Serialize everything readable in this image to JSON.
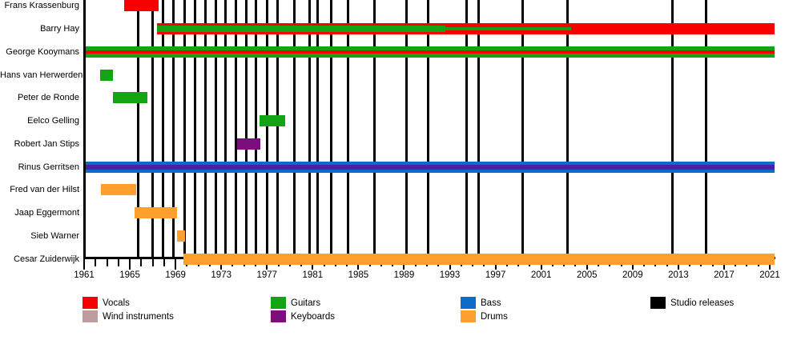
{
  "chart_data": {
    "type": "timeline",
    "description": "Band membership timeline (Gantt-style) with studio release markers",
    "x_axis": {
      "min": 1961,
      "max": 2021,
      "major_tick_step": 4,
      "minor_tick_step": 1,
      "tick_years": [
        1961,
        1965,
        1969,
        1973,
        1977,
        1981,
        1985,
        1989,
        1993,
        1997,
        2001,
        2005,
        2009,
        2013,
        2017,
        2021
      ],
      "tick_labels": [
        "1961",
        "1965",
        "1969",
        "1973",
        "1977",
        "1981",
        "1985",
        "1989",
        "1993",
        "1997",
        "2001",
        "2005",
        "2009",
        "2013",
        "2017",
        "2021"
      ]
    },
    "members": [
      {
        "name": "Frans Krassenburg",
        "segments": [
          {
            "from": 1964.5,
            "to": 1967.5,
            "stripes": [
              {
                "role": "vocals",
                "h": 14
              }
            ]
          }
        ]
      },
      {
        "name": "Barry Hay",
        "segments": [
          {
            "from": 1967.4,
            "to": 1992.6,
            "stripes": [
              {
                "role": "vocals",
                "h": 3
              },
              {
                "role": "guitars",
                "h": 8
              },
              {
                "role": "vocals",
                "h": 3
              }
            ]
          },
          {
            "from": 1992.6,
            "to": 2003.6,
            "stripes": [
              {
                "role": "vocals",
                "h": 5
              },
              {
                "role": "guitars",
                "h": 4
              },
              {
                "role": "vocals",
                "h": 5
              }
            ]
          },
          {
            "from": 2003.6,
            "to": 2021.4,
            "stripes": [
              {
                "role": "vocals",
                "h": 14
              }
            ]
          }
        ]
      },
      {
        "name": "George Kooymans",
        "segments": [
          {
            "from": 1961.0,
            "to": 2021.4,
            "stripes": [
              {
                "role": "guitars",
                "h": 5
              },
              {
                "role": "vocals",
                "h": 4
              },
              {
                "role": "guitars",
                "h": 5
              }
            ]
          }
        ]
      },
      {
        "name": "Hans van Herwerden",
        "segments": [
          {
            "from": 1962.4,
            "to": 1963.5,
            "stripes": [
              {
                "role": "guitars",
                "h": 14
              }
            ]
          }
        ]
      },
      {
        "name": "Peter de Ronde",
        "segments": [
          {
            "from": 1963.5,
            "to": 1966.55,
            "stripes": [
              {
                "role": "guitars",
                "h": 14
              }
            ]
          }
        ]
      },
      {
        "name": "Eelco Gelling",
        "segments": [
          {
            "from": 1976.35,
            "to": 1978.6,
            "stripes": [
              {
                "role": "guitars",
                "h": 14
              }
            ]
          }
        ]
      },
      {
        "name": "Robert Jan Stips",
        "segments": [
          {
            "from": 1974.4,
            "to": 1976.4,
            "stripes": [
              {
                "role": "keyboards",
                "h": 14
              }
            ]
          }
        ]
      },
      {
        "name": "Rinus Gerritsen",
        "segments": [
          {
            "from": 1961.0,
            "to": 2021.4,
            "stripes": [
              {
                "role": "bass",
                "h": 4
              },
              {
                "role": "bass_keyboards",
                "h": 6
              },
              {
                "role": "bass",
                "h": 4
              }
            ]
          }
        ]
      },
      {
        "name": "Fred van der Hilst",
        "segments": [
          {
            "from": 1962.5,
            "to": 1965.55,
            "stripes": [
              {
                "role": "drums",
                "h": 14
              }
            ]
          }
        ]
      },
      {
        "name": "Jaap Eggermont",
        "segments": [
          {
            "from": 1965.4,
            "to": 1969.1,
            "stripes": [
              {
                "role": "drums",
                "h": 14
              }
            ]
          }
        ]
      },
      {
        "name": "Sieb Warner",
        "segments": [
          {
            "from": 1969.1,
            "to": 1969.8,
            "stripes": [
              {
                "role": "drums",
                "h": 14
              }
            ]
          }
        ]
      },
      {
        "name": "Cesar Zuiderwijk",
        "segments": [
          {
            "from": 1969.7,
            "to": 2021.4,
            "stripes": [
              {
                "role": "drums",
                "h": 14
              }
            ]
          }
        ]
      }
    ],
    "studio_releases_years": [
      1965.7,
      1967.0,
      1967.9,
      1968.85,
      1969.8,
      1970.7,
      1971.6,
      1972.5,
      1973.4,
      1974.3,
      1975.2,
      1976.0,
      1977.0,
      1977.9,
      1979.4,
      1980.7,
      1981.4,
      1982.6,
      1984.1,
      1986.4,
      1989.2,
      1991.1,
      1994.5,
      1995.5,
      1999.4,
      2003.3,
      2012.5,
      2015.4
    ],
    "colors": {
      "vocals": "#f80000",
      "guitars": "#13a413",
      "bass": "#0d6bc9",
      "drums": "#ffa02e",
      "keyboards": "#7c0d7c",
      "wind": "#bc9c9c",
      "bass_keyboards": "#4b20a4",
      "studio": "#000000"
    },
    "legend": [
      {
        "label": "Vocals",
        "color_key": "vocals",
        "col": 0,
        "row": 0
      },
      {
        "label": "Wind instruments",
        "color_key": "wind",
        "col": 0,
        "row": 1
      },
      {
        "label": "Guitars",
        "color_key": "guitars",
        "col": 1,
        "row": 0
      },
      {
        "label": "Keyboards",
        "color_key": "keyboards",
        "col": 1,
        "row": 1
      },
      {
        "label": "Bass",
        "color_key": "bass",
        "col": 2,
        "row": 0
      },
      {
        "label": "Drums",
        "color_key": "drums",
        "col": 2,
        "row": 1
      },
      {
        "label": "Studio releases",
        "color_key": "studio",
        "col": 3,
        "row": 0
      }
    ]
  }
}
